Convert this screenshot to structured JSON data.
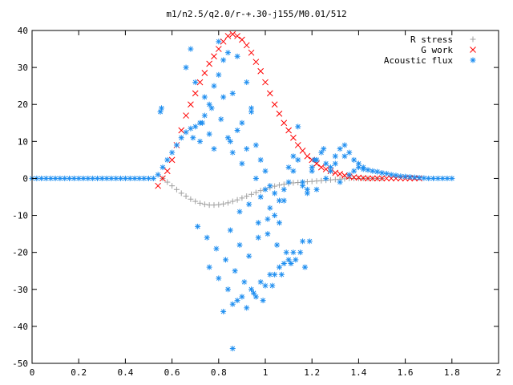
{
  "chart_data": {
    "type": "scatter",
    "title": "m1/n2.5/q2.0/r-+.30-j155/M0.01/512",
    "xlim": [
      0,
      2
    ],
    "ylim": [
      -50,
      40
    ],
    "x_ticks": [
      0,
      0.2,
      0.4,
      0.6,
      0.8,
      1,
      1.2,
      1.4,
      1.6,
      1.8,
      2
    ],
    "x_tick_labels": [
      "0",
      "0.2",
      "0.4",
      "0.6",
      "0.8",
      "1",
      "1.2",
      "1.4",
      "1.6",
      "1.8",
      "2"
    ],
    "y_ticks": [
      -50,
      -40,
      -30,
      -20,
      -10,
      0,
      10,
      20,
      30,
      40
    ],
    "y_tick_labels": [
      "-50",
      "-40",
      "-30",
      "-20",
      "-10",
      "0",
      "10",
      "20",
      "30",
      "40"
    ],
    "grid": false,
    "legend_position": "top-right",
    "series": [
      {
        "name": "R stress",
        "marker": "plus",
        "color": "#a0a0a0",
        "x": [
          0.56,
          0.58,
          0.6,
          0.62,
          0.64,
          0.66,
          0.68,
          0.7,
          0.72,
          0.74,
          0.76,
          0.78,
          0.8,
          0.82,
          0.84,
          0.86,
          0.88,
          0.9,
          0.92,
          0.94,
          0.96,
          0.98,
          1.0,
          1.02,
          1.04,
          1.06,
          1.08,
          1.1,
          1.12,
          1.14,
          1.16,
          1.18,
          1.2,
          1.22,
          1.24,
          1.26,
          1.28,
          1.3,
          1.32,
          1.34,
          1.36,
          1.38,
          1.4,
          1.42,
          1.44,
          1.46,
          1.48,
          1.5
        ],
        "y": [
          0,
          -1,
          -2,
          -3,
          -4,
          -4.8,
          -5.6,
          -6.2,
          -6.7,
          -7,
          -7.2,
          -7.2,
          -7.1,
          -6.9,
          -6.6,
          -6.2,
          -5.8,
          -5.3,
          -4.8,
          -4.3,
          -3.8,
          -3.3,
          -2.9,
          -2.5,
          -2.1,
          -1.8,
          -1.6,
          -1.4,
          -1.2,
          -1.1,
          -1,
          -0.9,
          -0.8,
          -0.7,
          -0.6,
          -0.5,
          -0.4,
          -0.3,
          -0.2,
          -0.1,
          0,
          0,
          0,
          0,
          0,
          0,
          0,
          0
        ]
      },
      {
        "name": "G work",
        "marker": "cross",
        "color": "#ff0000",
        "x": [
          0.54,
          0.56,
          0.58,
          0.6,
          0.62,
          0.64,
          0.66,
          0.68,
          0.7,
          0.72,
          0.74,
          0.76,
          0.78,
          0.8,
          0.82,
          0.84,
          0.86,
          0.88,
          0.9,
          0.92,
          0.94,
          0.96,
          0.98,
          1.0,
          1.02,
          1.04,
          1.06,
          1.08,
          1.1,
          1.12,
          1.14,
          1.16,
          1.18,
          1.2,
          1.22,
          1.24,
          1.26,
          1.28,
          1.3,
          1.32,
          1.34,
          1.36,
          1.38,
          1.4,
          1.42,
          1.44,
          1.46,
          1.48,
          1.5,
          1.52,
          1.54,
          1.56,
          1.58,
          1.6,
          1.62,
          1.64,
          1.66
        ],
        "y": [
          -2,
          0,
          2,
          5,
          9,
          13,
          17,
          20,
          23,
          26,
          28.5,
          31,
          33,
          35,
          37,
          38.5,
          39,
          38.5,
          37.5,
          36,
          34,
          31.5,
          29,
          26,
          23,
          20,
          17.5,
          15,
          13,
          11,
          9,
          7.5,
          6,
          5,
          4,
          3,
          2.5,
          2,
          1.5,
          1.2,
          0.8,
          0.5,
          0.3,
          0.2,
          0.1,
          0,
          0,
          0,
          0,
          0,
          0,
          0,
          0,
          0,
          0,
          0,
          0
        ]
      },
      {
        "name": "Acoustic flux",
        "marker": "star",
        "color": "#1e8ef0",
        "x": [
          0,
          0.02,
          0.04,
          0.06,
          0.08,
          0.1,
          0.12,
          0.14,
          0.16,
          0.18,
          0.2,
          0.22,
          0.24,
          0.26,
          0.28,
          0.3,
          0.32,
          0.34,
          0.36,
          0.38,
          0.4,
          0.42,
          0.44,
          0.46,
          0.48,
          0.5,
          0.52,
          0.54,
          0.56,
          0.58,
          0.6,
          0.62,
          0.64,
          0.66,
          0.68,
          0.7,
          0.55,
          0.555,
          0.66,
          0.68,
          0.7,
          0.72,
          0.74,
          0.76,
          0.78,
          0.8,
          0.82,
          0.84,
          0.86,
          0.88,
          0.9,
          0.92,
          0.94,
          0.96,
          0.98,
          1.0,
          1.02,
          1.04,
          1.06,
          1.08,
          1.1,
          1.12,
          1.14,
          1.16,
          1.18,
          0.72,
          0.74,
          0.76,
          0.78,
          0.8,
          0.82,
          0.84,
          0.86,
          0.88,
          0.9,
          0.92,
          0.94,
          0.96,
          0.98,
          1.0,
          1.02,
          1.04,
          1.06,
          1.08,
          1.1,
          1.12,
          1.14,
          1.16,
          1.18,
          1.2,
          0.69,
          0.73,
          0.77,
          0.81,
          0.85,
          0.89,
          0.93,
          0.97,
          1.01,
          1.05,
          1.09,
          1.13,
          1.17,
          1.21,
          1.25,
          0.71,
          0.75,
          0.79,
          0.83,
          0.87,
          0.91,
          0.95,
          0.99,
          1.03,
          1.07,
          1.11,
          1.15,
          1.19,
          0.76,
          0.8,
          0.84,
          0.88,
          0.92,
          0.96,
          1.0,
          1.04,
          1.08,
          1.12,
          1.16,
          0.82,
          0.86,
          0.9,
          0.94,
          0.98,
          1.02,
          1.06,
          1.1,
          0.85,
          0.89,
          0.93,
          0.97,
          1.01,
          0.86,
          1.2,
          1.22,
          1.24,
          1.26,
          1.28,
          1.3,
          1.32,
          1.34,
          1.36,
          1.38,
          1.4,
          1.42,
          1.44,
          1.46,
          1.48,
          1.5,
          1.52,
          1.54,
          1.56,
          1.58,
          1.6,
          1.62,
          1.64,
          1.66,
          1.68,
          1.7,
          1.72,
          1.74,
          1.76,
          1.78,
          1.8,
          1.22,
          1.26,
          1.3,
          1.34,
          1.38,
          1.42,
          1.36,
          1.4,
          1.32,
          1.28
        ],
        "y": [
          0,
          0,
          0,
          0,
          0,
          0,
          0,
          0,
          0,
          0,
          0,
          0,
          0,
          0,
          0,
          0,
          0,
          0,
          0,
          0,
          0,
          0,
          0,
          0,
          0,
          0,
          0,
          1,
          3,
          5,
          7,
          9,
          11,
          12.5,
          13.5,
          14,
          18,
          19,
          30,
          35,
          26,
          15,
          22,
          12,
          8,
          37,
          32,
          34,
          23,
          33,
          15,
          26,
          18,
          9,
          5,
          2,
          -2,
          -4,
          -6,
          -3,
          -1,
          2,
          5,
          -2,
          -3,
          10,
          17,
          20,
          25,
          28,
          22,
          11,
          7,
          13,
          4,
          8,
          19,
          0,
          -5,
          -3,
          -8,
          -10,
          -12,
          -6,
          3,
          6,
          14,
          -1,
          -4,
          2,
          11,
          15,
          19,
          16,
          10,
          -9,
          -7,
          -12,
          -15,
          -18,
          -20,
          -22,
          -24,
          5,
          8,
          -13,
          -16,
          -19,
          -22,
          -25,
          -28,
          -31,
          -33,
          -29,
          -26,
          -23,
          -20,
          -17,
          -24,
          -27,
          -30,
          -33,
          -35,
          -32,
          -29,
          -26,
          -23,
          -20,
          -17,
          -36,
          -34,
          -32,
          -30,
          -28,
          -26,
          -24,
          -22,
          -14,
          -18,
          -21,
          -16,
          -11,
          -46,
          3,
          5,
          7,
          4,
          2,
          6,
          8,
          9,
          7,
          5,
          3,
          2.5,
          2.3,
          2,
          1.8,
          1.5,
          1.3,
          1,
          0.8,
          0.6,
          0.5,
          0.4,
          0.3,
          0.2,
          0.1,
          0,
          0,
          0,
          0,
          0,
          0,
          -3,
          0,
          4,
          6,
          2,
          3,
          1,
          4,
          -1,
          3
        ]
      }
    ]
  }
}
